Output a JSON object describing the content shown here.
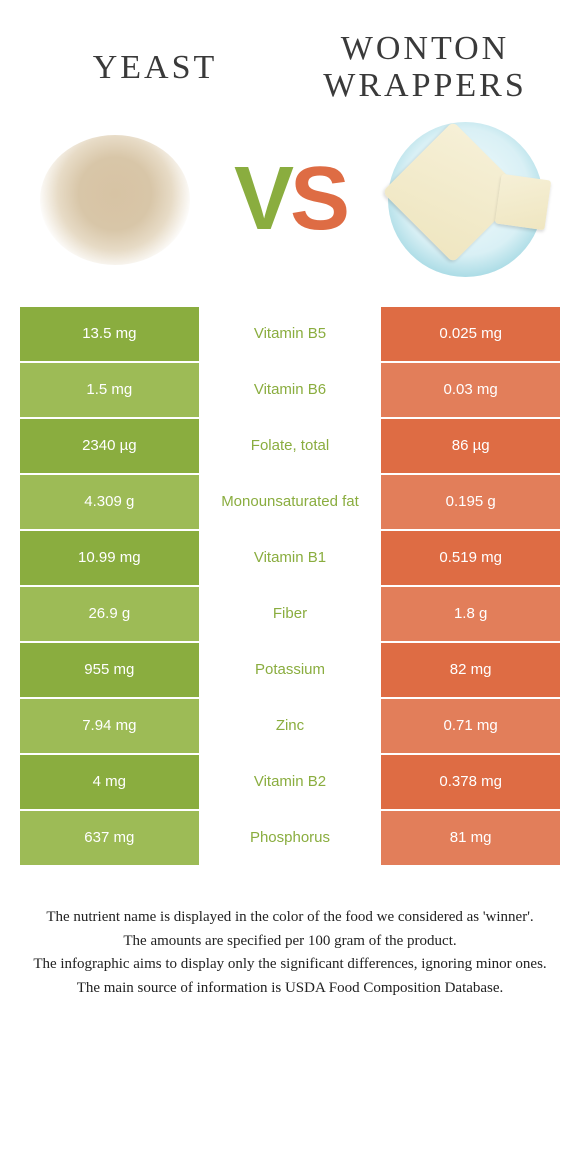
{
  "header": {
    "left_title": "YEAST",
    "right_title": "WONTON WRAPPERS"
  },
  "vs": {
    "v": "V",
    "s": "S"
  },
  "colors": {
    "left": "#8aad3f",
    "right": "#de6c44",
    "left_alt": "#9dbb56",
    "right_alt": "#e27e5a",
    "mid_text_left": "#8aad3f",
    "mid_text_right": "#de6c44"
  },
  "rows": [
    {
      "left": "13.5 mg",
      "mid": "Vitamin B5",
      "right": "0.025 mg",
      "winner": "left"
    },
    {
      "left": "1.5 mg",
      "mid": "Vitamin B6",
      "right": "0.03 mg",
      "winner": "left"
    },
    {
      "left": "2340 µg",
      "mid": "Folate, total",
      "right": "86 µg",
      "winner": "left"
    },
    {
      "left": "4.309 g",
      "mid": "Monounsaturated fat",
      "right": "0.195 g",
      "winner": "left"
    },
    {
      "left": "10.99 mg",
      "mid": "Vitamin B1",
      "right": "0.519 mg",
      "winner": "left"
    },
    {
      "left": "26.9 g",
      "mid": "Fiber",
      "right": "1.8 g",
      "winner": "left"
    },
    {
      "left": "955 mg",
      "mid": "Potassium",
      "right": "82 mg",
      "winner": "left"
    },
    {
      "left": "7.94 mg",
      "mid": "Zinc",
      "right": "0.71 mg",
      "winner": "left"
    },
    {
      "left": "4 mg",
      "mid": "Vitamin B2",
      "right": "0.378 mg",
      "winner": "left"
    },
    {
      "left": "637 mg",
      "mid": "Phosphorus",
      "right": "81 mg",
      "winner": "left"
    }
  ],
  "footer": {
    "lines": [
      "The nutrient name is displayed in the color of the food we considered as 'winner'.",
      "The amounts are specified per 100 gram of the product.",
      "The infographic aims to display only the significant differences, ignoring minor ones.",
      "The main source of information is USDA Food Composition Database."
    ]
  }
}
